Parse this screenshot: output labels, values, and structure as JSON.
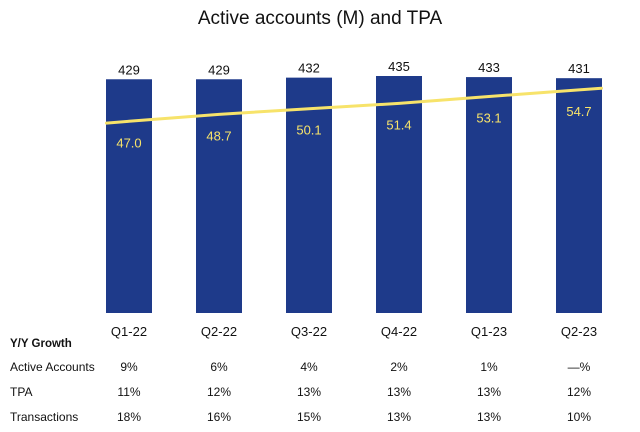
{
  "chart_data": {
    "type": "bar",
    "title": "Active accounts (M) and TPA",
    "categories": [
      "Q1-22",
      "Q2-22",
      "Q3-22",
      "Q4-22",
      "Q1-23",
      "Q2-23"
    ],
    "series": [
      {
        "name": "Active accounts (M)",
        "type": "bar",
        "values": [
          429,
          429,
          432,
          435,
          433,
          431
        ]
      },
      {
        "name": "TPA",
        "type": "line",
        "values": [
          47.0,
          48.7,
          50.1,
          51.4,
          53.1,
          54.7
        ],
        "labels": [
          "47.0",
          "48.7",
          "50.1",
          "51.4",
          "53.1",
          "54.7"
        ]
      }
    ],
    "ylim": [
      0,
      435
    ],
    "tpa_ylim": [
      0,
      64
    ],
    "grid": false,
    "colors": {
      "bar": "#1e3a8a",
      "line": "#f7e36a",
      "line_label": "#f7e36a",
      "text": "#111111"
    }
  },
  "growth_table": {
    "header": "Y/Y Growth",
    "rows": [
      {
        "label": "Active Accounts",
        "values": [
          "9%",
          "6%",
          "4%",
          "2%",
          "1%",
          "—%"
        ]
      },
      {
        "label": "TPA",
        "values": [
          "11%",
          "12%",
          "13%",
          "13%",
          "13%",
          "12%"
        ]
      },
      {
        "label": "Transactions",
        "values": [
          "18%",
          "16%",
          "15%",
          "13%",
          "13%",
          "10%"
        ]
      }
    ]
  }
}
